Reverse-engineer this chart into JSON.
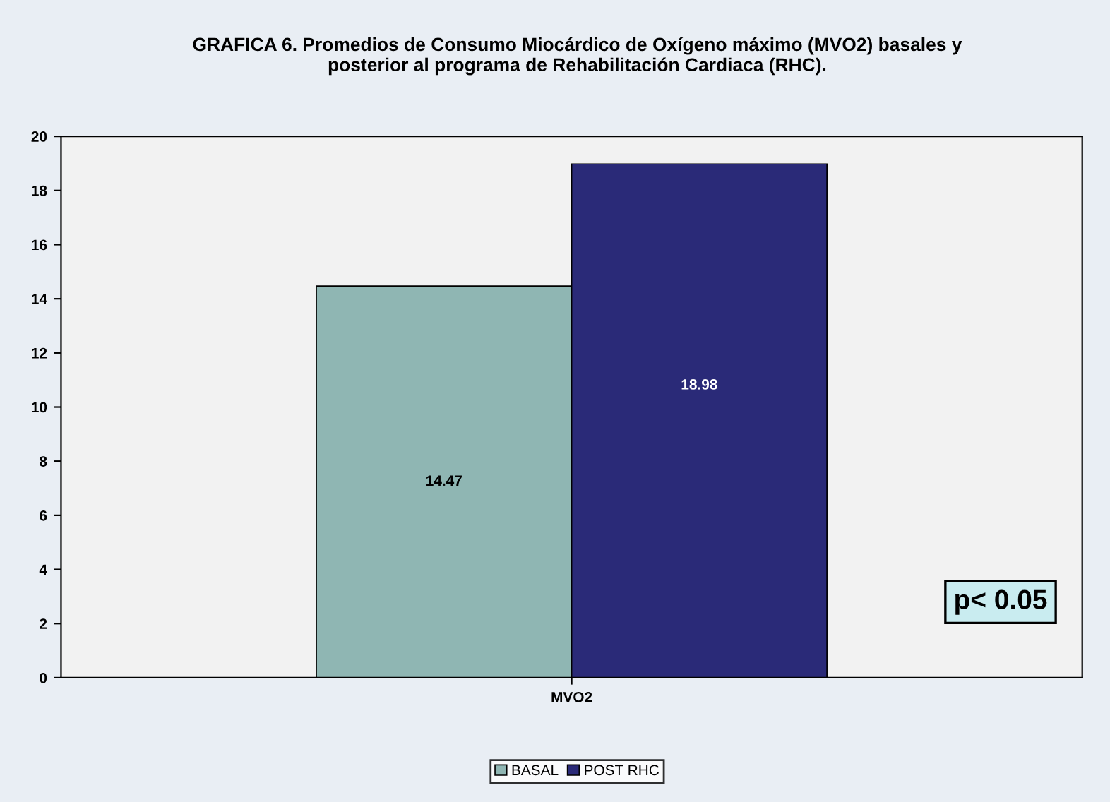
{
  "chart_data": {
    "type": "bar",
    "title": "GRAFICA 6. Promedios de Consumo Miocárdico de Oxígeno máximo (MVO2) basales y\nposterior al programa de Rehabilitación Cardiaca (RHC).",
    "categories": [
      "MVO2"
    ],
    "series": [
      {
        "name": "BASAL",
        "color": "#8fb6b3",
        "values": [
          14.47
        ]
      },
      {
        "name": "POST RHC",
        "color": "#2a2a78",
        "values": [
          18.98
        ]
      }
    ],
    "ylim": [
      0,
      20
    ],
    "yticks": [
      0,
      2,
      4,
      6,
      8,
      10,
      12,
      14,
      16,
      18,
      20
    ],
    "data_labels": true,
    "legend": "bottom",
    "grid": false,
    "annotations": [
      "p< 0.05"
    ]
  }
}
